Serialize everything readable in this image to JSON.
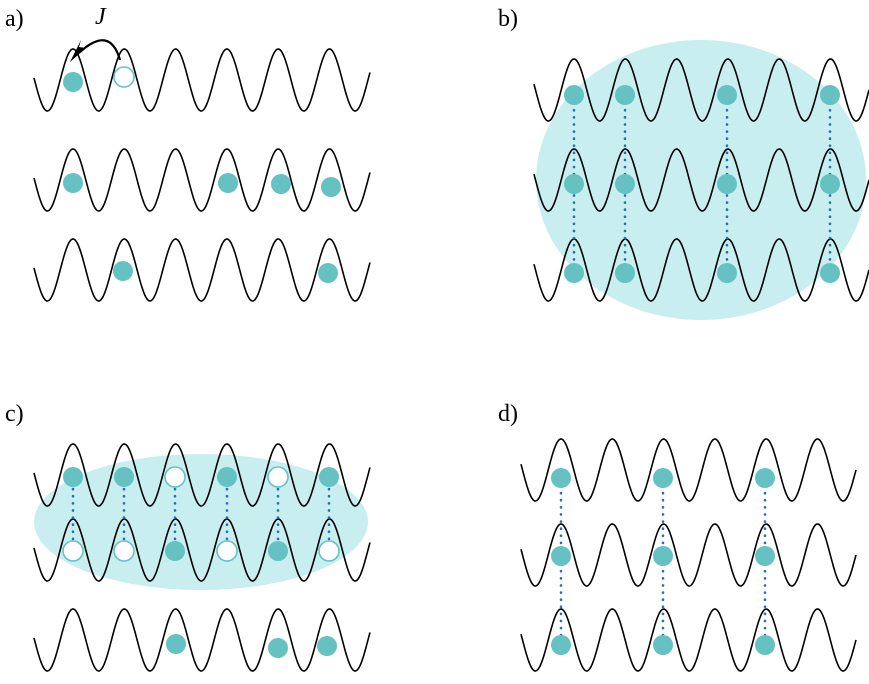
{
  "panels": [
    {
      "label": "a)"
    },
    {
      "label": "b)"
    },
    {
      "label": "c)"
    },
    {
      "label": "d)"
    }
  ],
  "hopping_label": "J",
  "colors": {
    "atom_fill": "#66c2c2",
    "hole_stroke": "#66c2c2",
    "ellipse": "#c8eef0",
    "correlation_dots": "#1f6fc0",
    "potential": "#000000"
  },
  "icons": {
    "atom": "filled-circle",
    "hole": "open-circle",
    "hop_arrow": "curved-arrow"
  }
}
